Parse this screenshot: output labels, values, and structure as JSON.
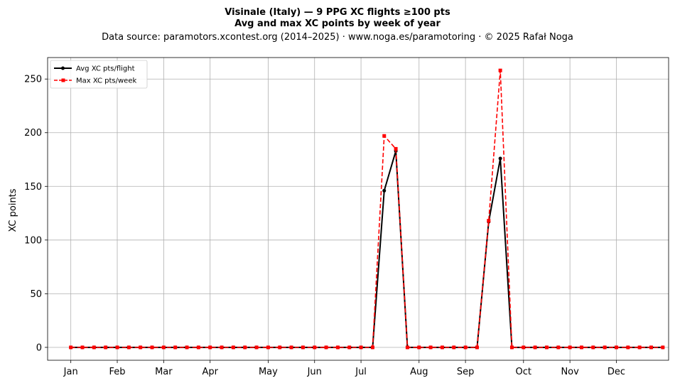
{
  "chart_data": {
    "type": "line",
    "title": "Visinale (Italy)  —  9 PPG XC flights ≥100 pts",
    "subtitle": "Avg and max XC points by week of year",
    "source": "Data source: paramotors.xcontest.org (2014–2025)  ·  www.noga.es/paramotoring  ·  © 2025 Rafał Noga",
    "xlabel": "",
    "ylabel": "XC points",
    "xlim": [
      -4,
      103
    ],
    "ylim": [
      -12,
      270
    ],
    "yticks": [
      0,
      50,
      100,
      150,
      200,
      250
    ],
    "xticks": [
      {
        "label": "Jan",
        "x": 0
      },
      {
        "label": "Feb",
        "x": 8
      },
      {
        "label": "Mar",
        "x": 16
      },
      {
        "label": "Apr",
        "x": 24
      },
      {
        "label": "May",
        "x": 34
      },
      {
        "label": "Jun",
        "x": 42
      },
      {
        "label": "Jul",
        "x": 50
      },
      {
        "label": "Aug",
        "x": 60
      },
      {
        "label": "Sep",
        "x": 68
      },
      {
        "label": "Oct",
        "x": 78
      },
      {
        "label": "Nov",
        "x": 86
      },
      {
        "label": "Dec",
        "x": 94
      }
    ],
    "grid": true,
    "legend_position": "top-left",
    "series": [
      {
        "name": "Avg XC pts/flight",
        "color": "#000000",
        "marker": "circle",
        "linestyle": "solid",
        "x": [
          0,
          2,
          4,
          6,
          8,
          10,
          12,
          14,
          16,
          18,
          20,
          22,
          24,
          26,
          28,
          30,
          32,
          34,
          36,
          38,
          40,
          42,
          44,
          46,
          48,
          50,
          52,
          54,
          56,
          58,
          60,
          62,
          64,
          66,
          68,
          70,
          72,
          74,
          76,
          78,
          80,
          82,
          84,
          86,
          88,
          90,
          92,
          94,
          96,
          98,
          100,
          102
        ],
        "values": [
          0,
          0,
          0,
          0,
          0,
          0,
          0,
          0,
          0,
          0,
          0,
          0,
          0,
          0,
          0,
          0,
          0,
          0,
          0,
          0,
          0,
          0,
          0,
          0,
          0,
          0,
          0,
          146,
          183,
          0,
          0,
          0,
          0,
          0,
          0,
          0,
          117,
          176,
          0,
          0,
          0,
          0,
          0,
          0,
          0,
          0,
          0,
          0,
          0,
          0,
          0,
          0
        ]
      },
      {
        "name": "Max XC pts/week",
        "color": "#ff0000",
        "marker": "square",
        "linestyle": "dashed",
        "x": [
          0,
          2,
          4,
          6,
          8,
          10,
          12,
          14,
          16,
          18,
          20,
          22,
          24,
          26,
          28,
          30,
          32,
          34,
          36,
          38,
          40,
          42,
          44,
          46,
          48,
          50,
          52,
          54,
          56,
          58,
          60,
          62,
          64,
          66,
          68,
          70,
          72,
          74,
          76,
          78,
          80,
          82,
          84,
          86,
          88,
          90,
          92,
          94,
          96,
          98,
          100,
          102
        ],
        "values": [
          0,
          0,
          0,
          0,
          0,
          0,
          0,
          0,
          0,
          0,
          0,
          0,
          0,
          0,
          0,
          0,
          0,
          0,
          0,
          0,
          0,
          0,
          0,
          0,
          0,
          0,
          0,
          197,
          185,
          0,
          0,
          0,
          0,
          0,
          0,
          0,
          118,
          258,
          0,
          0,
          0,
          0,
          0,
          0,
          0,
          0,
          0,
          0,
          0,
          0,
          0,
          0
        ]
      }
    ]
  }
}
